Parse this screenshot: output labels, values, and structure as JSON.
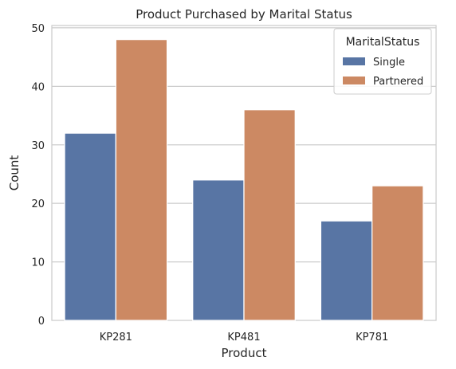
{
  "chart_data": {
    "type": "bar",
    "title": "Product Purchased by Marital Status",
    "xlabel": "Product",
    "ylabel": "Count",
    "categories": [
      "KP281",
      "KP481",
      "KP781"
    ],
    "series": [
      {
        "name": "Single",
        "values": [
          32,
          24,
          17
        ],
        "color": "#5875a4"
      },
      {
        "name": "Partnered",
        "values": [
          48,
          36,
          23
        ],
        "color": "#cc8963"
      }
    ],
    "ylim": [
      0,
      50.4
    ],
    "yticks": [
      0,
      10,
      20,
      30,
      40,
      50
    ],
    "grid": "horizontal",
    "legend": {
      "title": "MaritalStatus",
      "position": "top-right"
    }
  }
}
